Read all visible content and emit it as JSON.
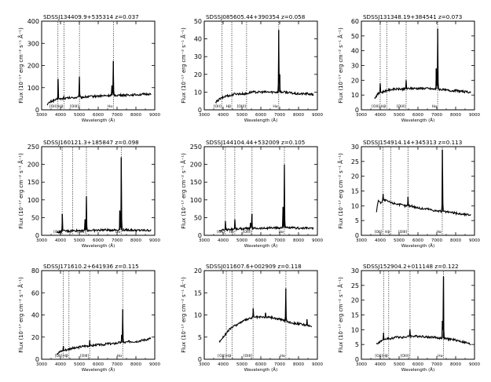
{
  "figure": {
    "ylabel": "Flux (10⁻¹⁷ erg cm⁻² s⁻¹ Å⁻¹)",
    "xlabel": "Wavelength (Å)"
  },
  "chart_data": [
    {
      "type": "line",
      "title": "SDSSJ134409.9+535314 z=0.037",
      "xlabel": "Wavelength (Å)",
      "ylabel": "Flux (10⁻¹⁷ erg cm⁻² s⁻¹ Å⁻¹)",
      "xlim": [
        3000,
        9000
      ],
      "ylim": [
        0,
        400
      ],
      "xticks": [
        3000,
        4000,
        5000,
        6000,
        7000,
        8000,
        9000
      ],
      "yticks": [
        0,
        100,
        200,
        300,
        400
      ],
      "line_labels": [
        "[OII]",
        "Hβ",
        "[OIII]",
        "Hα"
      ],
      "line_x": [
        3865,
        4185,
        5005,
        6805
      ],
      "series": [
        {
          "x": [
            3300,
            3500,
            3700,
            3900,
            4100,
            4300,
            4500,
            4700,
            4900,
            5100,
            5300,
            5600,
            5900,
            6200,
            6500,
            6800,
            7000,
            7300,
            7600,
            7900,
            8200,
            8500,
            8800
          ],
          "y": [
            25,
            38,
            44,
            48,
            50,
            52,
            54,
            55,
            56,
            57,
            58,
            60,
            62,
            63,
            64,
            66,
            66,
            66,
            67,
            68,
            69,
            70,
            72
          ]
        }
      ],
      "peaks": [
        [
          3865,
          140
        ],
        [
          4185,
          60
        ],
        [
          5005,
          150
        ],
        [
          6805,
          220
        ],
        [
          6730,
          110
        ]
      ]
    },
    {
      "type": "line",
      "title": "SDSSJ085605.44+390354 z=0.058",
      "xlabel": "Wavelength (Å)",
      "ylabel": "Flux (10⁻¹⁷ erg cm⁻² s⁻¹ Å⁻¹)",
      "xlim": [
        3000,
        9000
      ],
      "ylim": [
        0,
        50
      ],
      "xticks": [
        3000,
        4000,
        5000,
        6000,
        7000,
        8000,
        9000
      ],
      "yticks": [
        0,
        10,
        20,
        30,
        40,
        50
      ],
      "line_labels": [
        "[OII]",
        "Hβ",
        "[OIII]",
        "Hα"
      ],
      "line_x": [
        3945,
        4460,
        5245,
        6950
      ],
      "series": [
        {
          "x": [
            3600,
            3800,
            4000,
            4200,
            4400,
            4600,
            4800,
            5000,
            5200,
            5500,
            5800,
            6100,
            6400,
            6700,
            7000,
            7300,
            7600,
            7900,
            8200,
            8500,
            8800
          ],
          "y": [
            4,
            6,
            7,
            8,
            8,
            9,
            9,
            9,
            9,
            10,
            10,
            10,
            10,
            10,
            10,
            10,
            9.5,
            9,
            9,
            9,
            8.5
          ]
        }
      ],
      "peaks": [
        [
          6950,
          45
        ],
        [
          7010,
          20
        ]
      ]
    },
    {
      "type": "line",
      "title": "SDSSJ131348.19+384541 z=0.073",
      "xlabel": "Wavelength (Å)",
      "ylabel": "Flux (10⁻¹⁷ erg cm⁻² s⁻¹ Å⁻¹)",
      "xlim": [
        3000,
        9000
      ],
      "ylim": [
        0,
        60
      ],
      "xticks": [
        3000,
        4000,
        5000,
        6000,
        7000,
        8000,
        9000
      ],
      "yticks": [
        0,
        10,
        20,
        30,
        40,
        50,
        60
      ],
      "line_labels": [
        "[OII]",
        "Hβ",
        "[OIII]",
        "Hα"
      ],
      "line_x": [
        4000,
        4345,
        5375,
        7045
      ],
      "series": [
        {
          "x": [
            3700,
            3900,
            4100,
            4300,
            4500,
            4700,
            5000,
            5300,
            5600,
            5900,
            6200,
            6500,
            6800,
            7100,
            7400,
            7700,
            8000,
            8300,
            8600,
            8800
          ],
          "y": [
            8,
            11,
            12,
            13,
            13.5,
            14,
            14,
            14,
            14.5,
            14.5,
            14.5,
            14.5,
            14,
            14,
            13.5,
            13,
            13,
            12.5,
            12,
            12
          ]
        }
      ],
      "peaks": [
        [
          7045,
          55
        ],
        [
          5375,
          20
        ],
        [
          4000,
          18
        ],
        [
          6965,
          28
        ]
      ]
    },
    {
      "type": "line",
      "title": "SDSSJ160121.3+185847 z=0.098",
      "xlabel": "Wavelength (Å)",
      "ylabel": "Flux (10⁻¹⁷ erg cm⁻² s⁻¹ Å⁻¹)",
      "xlim": [
        3000,
        9000
      ],
      "ylim": [
        0,
        250
      ],
      "xticks": [
        3000,
        4000,
        5000,
        6000,
        7000,
        8000,
        9000
      ],
      "yticks": [
        0,
        50,
        100,
        150,
        200,
        250
      ],
      "line_labels": [
        "[OII]",
        "Hβ",
        "[OIII]",
        "Hα"
      ],
      "line_x": [
        4090,
        4640,
        5375,
        7220
      ],
      "series": [
        {
          "x": [
            3800,
            4000,
            4200,
            4400,
            4600,
            4800,
            5000,
            5300,
            5600,
            5900,
            6200,
            6500,
            6800,
            7100,
            7400,
            7700,
            8000,
            8300,
            8600,
            8800
          ],
          "y": [
            8,
            10,
            12,
            12,
            13,
            13,
            14,
            14,
            14,
            14,
            15,
            15,
            15,
            15,
            15,
            15,
            14,
            14,
            14,
            14
          ]
        }
      ],
      "peaks": [
        [
          4090,
          60
        ],
        [
          5375,
          110
        ],
        [
          5300,
          45
        ],
        [
          7220,
          220
        ],
        [
          7140,
          70
        ]
      ]
    },
    {
      "type": "line",
      "title": "SDSSJ144104.44+532009 z=0.105",
      "xlabel": "Wavelength (Å)",
      "ylabel": "Flux (10⁻¹⁷ erg cm⁻² s⁻¹ Å⁻¹)",
      "xlim": [
        3000,
        9000
      ],
      "ylim": [
        0,
        250
      ],
      "xticks": [
        3000,
        4000,
        5000,
        6000,
        7000,
        8000,
        9000
      ],
      "yticks": [
        0,
        50,
        100,
        150,
        200,
        250
      ],
      "line_labels": [
        "[OII]",
        "Hβ",
        "[OIII]",
        "Hα"
      ],
      "line_x": [
        4120,
        4620,
        5535,
        7250
      ],
      "series": [
        {
          "x": [
            3800,
            4000,
            4200,
            4400,
            4600,
            4800,
            5000,
            5300,
            5600,
            5900,
            6200,
            6500,
            6800,
            7100,
            7400,
            7700,
            8000,
            8300,
            8600,
            8800
          ],
          "y": [
            12,
            15,
            16,
            17,
            18,
            18,
            19,
            19,
            20,
            20,
            20,
            21,
            21,
            21,
            21,
            21,
            20,
            20,
            20,
            19
          ]
        }
      ],
      "peaks": [
        [
          4120,
          40
        ],
        [
          4620,
          45
        ],
        [
          5535,
          60
        ],
        [
          5450,
          35
        ],
        [
          7250,
          200
        ],
        [
          7180,
          80
        ]
      ]
    },
    {
      "type": "line",
      "title": "SDSSJ154914.14+345313 z=0.113",
      "xlabel": "Wavelength (Å)",
      "ylabel": "Flux (10⁻¹⁷ erg cm⁻² s⁻¹ Å⁻¹)",
      "xlim": [
        3000,
        9000
      ],
      "ylim": [
        0,
        30
      ],
      "xticks": [
        3000,
        4000,
        5000,
        6000,
        7000,
        8000,
        9000
      ],
      "yticks": [
        0,
        5,
        10,
        15,
        20,
        25,
        30
      ],
      "line_labels": [
        "[OII]",
        "Hβ",
        "[OIII]",
        "Hα"
      ],
      "line_x": [
        4150,
        4560,
        5470,
        7290
      ],
      "series": [
        {
          "x": [
            3800,
            3900,
            4000,
            4100,
            4200,
            4400,
            4600,
            4800,
            5000,
            5300,
            5600,
            5900,
            6200,
            6500,
            6800,
            7100,
            7400,
            7700,
            8000,
            8300,
            8600,
            8800
          ],
          "y": [
            8,
            12,
            11,
            11.5,
            12,
            11.5,
            11,
            10.8,
            10.5,
            10,
            10,
            9.5,
            9,
            9,
            8.5,
            8.2,
            8,
            7.8,
            7.5,
            7.2,
            7,
            7
          ]
        }
      ],
      "peaks": [
        [
          7290,
          29
        ],
        [
          5470,
          13
        ],
        [
          4150,
          14
        ]
      ]
    },
    {
      "type": "line",
      "title": "SDSSJ171610.2+641936 z=0.115",
      "xlabel": "Wavelength (Å)",
      "ylabel": "Flux (10⁻¹⁷ erg cm⁻² s⁻¹ Å⁻¹)",
      "xlim": [
        3000,
        9000
      ],
      "ylim": [
        0,
        80
      ],
      "xticks": [
        3000,
        4000,
        5000,
        6000,
        7000,
        8000,
        9000
      ],
      "yticks": [
        0,
        20,
        40,
        60,
        80
      ],
      "line_labels": [
        "[OII]",
        "Hβ",
        "[OIII]",
        "Hα"
      ],
      "line_x": [
        4150,
        4450,
        5550,
        7300
      ],
      "series": [
        {
          "x": [
            3800,
            4000,
            4200,
            4400,
            4600,
            4800,
            5000,
            5300,
            5600,
            5900,
            6200,
            6500,
            6800,
            7100,
            7400,
            7700,
            8000,
            8300,
            8600,
            8800
          ],
          "y": [
            5,
            7,
            8,
            9,
            10,
            10,
            11,
            12,
            12,
            13,
            13,
            14,
            14,
            15,
            15,
            16,
            16,
            17,
            18,
            19
          ]
        }
      ],
      "peaks": [
        [
          7300,
          45
        ],
        [
          7240,
          22
        ],
        [
          5550,
          17
        ],
        [
          4150,
          12
        ]
      ]
    },
    {
      "type": "line",
      "title": "SDSSJ011607.6+002909 z=0.118",
      "xlabel": "Wavelength (Å)",
      "ylabel": "Flux (10⁻¹⁷ erg cm⁻² s⁻¹ Å⁻¹)",
      "xlim": [
        3000,
        9000
      ],
      "ylim": [
        0,
        20
      ],
      "xticks": [
        3000,
        4000,
        5000,
        6000,
        7000,
        8000,
        9000
      ],
      "yticks": [
        0,
        5,
        10,
        15,
        20
      ],
      "line_labels": [
        "[OII]",
        "Hβ",
        "[OIII]",
        "Hα"
      ],
      "line_x": [
        4170,
        4470,
        5590,
        7330
      ],
      "series": [
        {
          "x": [
            3800,
            4000,
            4200,
            4400,
            4600,
            4800,
            5000,
            5300,
            5600,
            5900,
            6200,
            6500,
            6800,
            7100,
            7400,
            7700,
            8000,
            8300,
            8500,
            8700
          ],
          "y": [
            4,
            5,
            6,
            7,
            7.5,
            8,
            8.5,
            9,
            9.5,
            9.5,
            9.5,
            9.5,
            9.2,
            9,
            8.5,
            8.2,
            8,
            7.8,
            7.5,
            7.5
          ]
        }
      ],
      "peaks": [
        [
          7330,
          16
        ],
        [
          5590,
          11.5
        ],
        [
          6250,
          10.5
        ],
        [
          8450,
          9
        ]
      ]
    },
    {
      "type": "line",
      "title": "SDSSJ152904.2+011148 z=0.122",
      "xlabel": "Wavelength (Å)",
      "ylabel": "Flux (10⁻¹⁷ erg cm⁻² s⁻¹ Å⁻¹)",
      "xlim": [
        3000,
        9000
      ],
      "ylim": [
        0,
        30
      ],
      "xticks": [
        3000,
        4000,
        5000,
        6000,
        7000,
        8000,
        9000
      ],
      "yticks": [
        0,
        5,
        10,
        15,
        20,
        25,
        30
      ],
      "line_labels": [
        "[OII]",
        "Hβ",
        "[OIII]",
        "Hα"
      ],
      "line_x": [
        4180,
        4450,
        5580,
        7360
      ],
      "series": [
        {
          "x": [
            3800,
            4000,
            4200,
            4400,
            4600,
            4800,
            5000,
            5300,
            5600,
            5900,
            6200,
            6500,
            6800,
            7100,
            7400,
            7700,
            8000,
            8300,
            8600,
            8800
          ],
          "y": [
            5,
            6,
            6.5,
            7,
            7,
            7.5,
            7.5,
            7.5,
            7.8,
            7.8,
            7.8,
            7.5,
            7.5,
            7.2,
            7,
            6.8,
            6.5,
            6,
            5.5,
            5
          ]
        }
      ],
      "peaks": [
        [
          7360,
          28
        ],
        [
          7290,
          13
        ],
        [
          5580,
          10
        ],
        [
          4180,
          9
        ]
      ]
    }
  ]
}
